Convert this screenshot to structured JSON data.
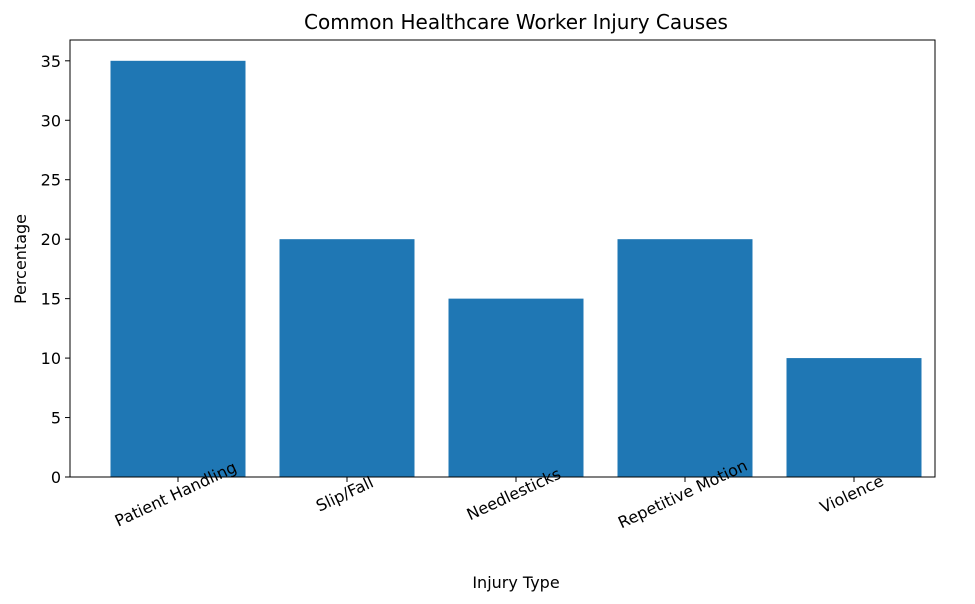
{
  "chart_data": {
    "type": "bar",
    "title": "Common Healthcare Worker Injury Causes",
    "xlabel": "Injury Type",
    "ylabel": "Percentage",
    "categories": [
      "Patient Handling",
      "Slip/Fall",
      "Needlesticks",
      "Repetitive Motion",
      "Violence"
    ],
    "values": [
      35,
      20,
      15,
      20,
      10
    ],
    "color": "#1f77b4",
    "ylim": [
      0,
      36.75
    ],
    "yticks": [
      0,
      5,
      10,
      15,
      20,
      25,
      30,
      35
    ],
    "grid": false
  }
}
